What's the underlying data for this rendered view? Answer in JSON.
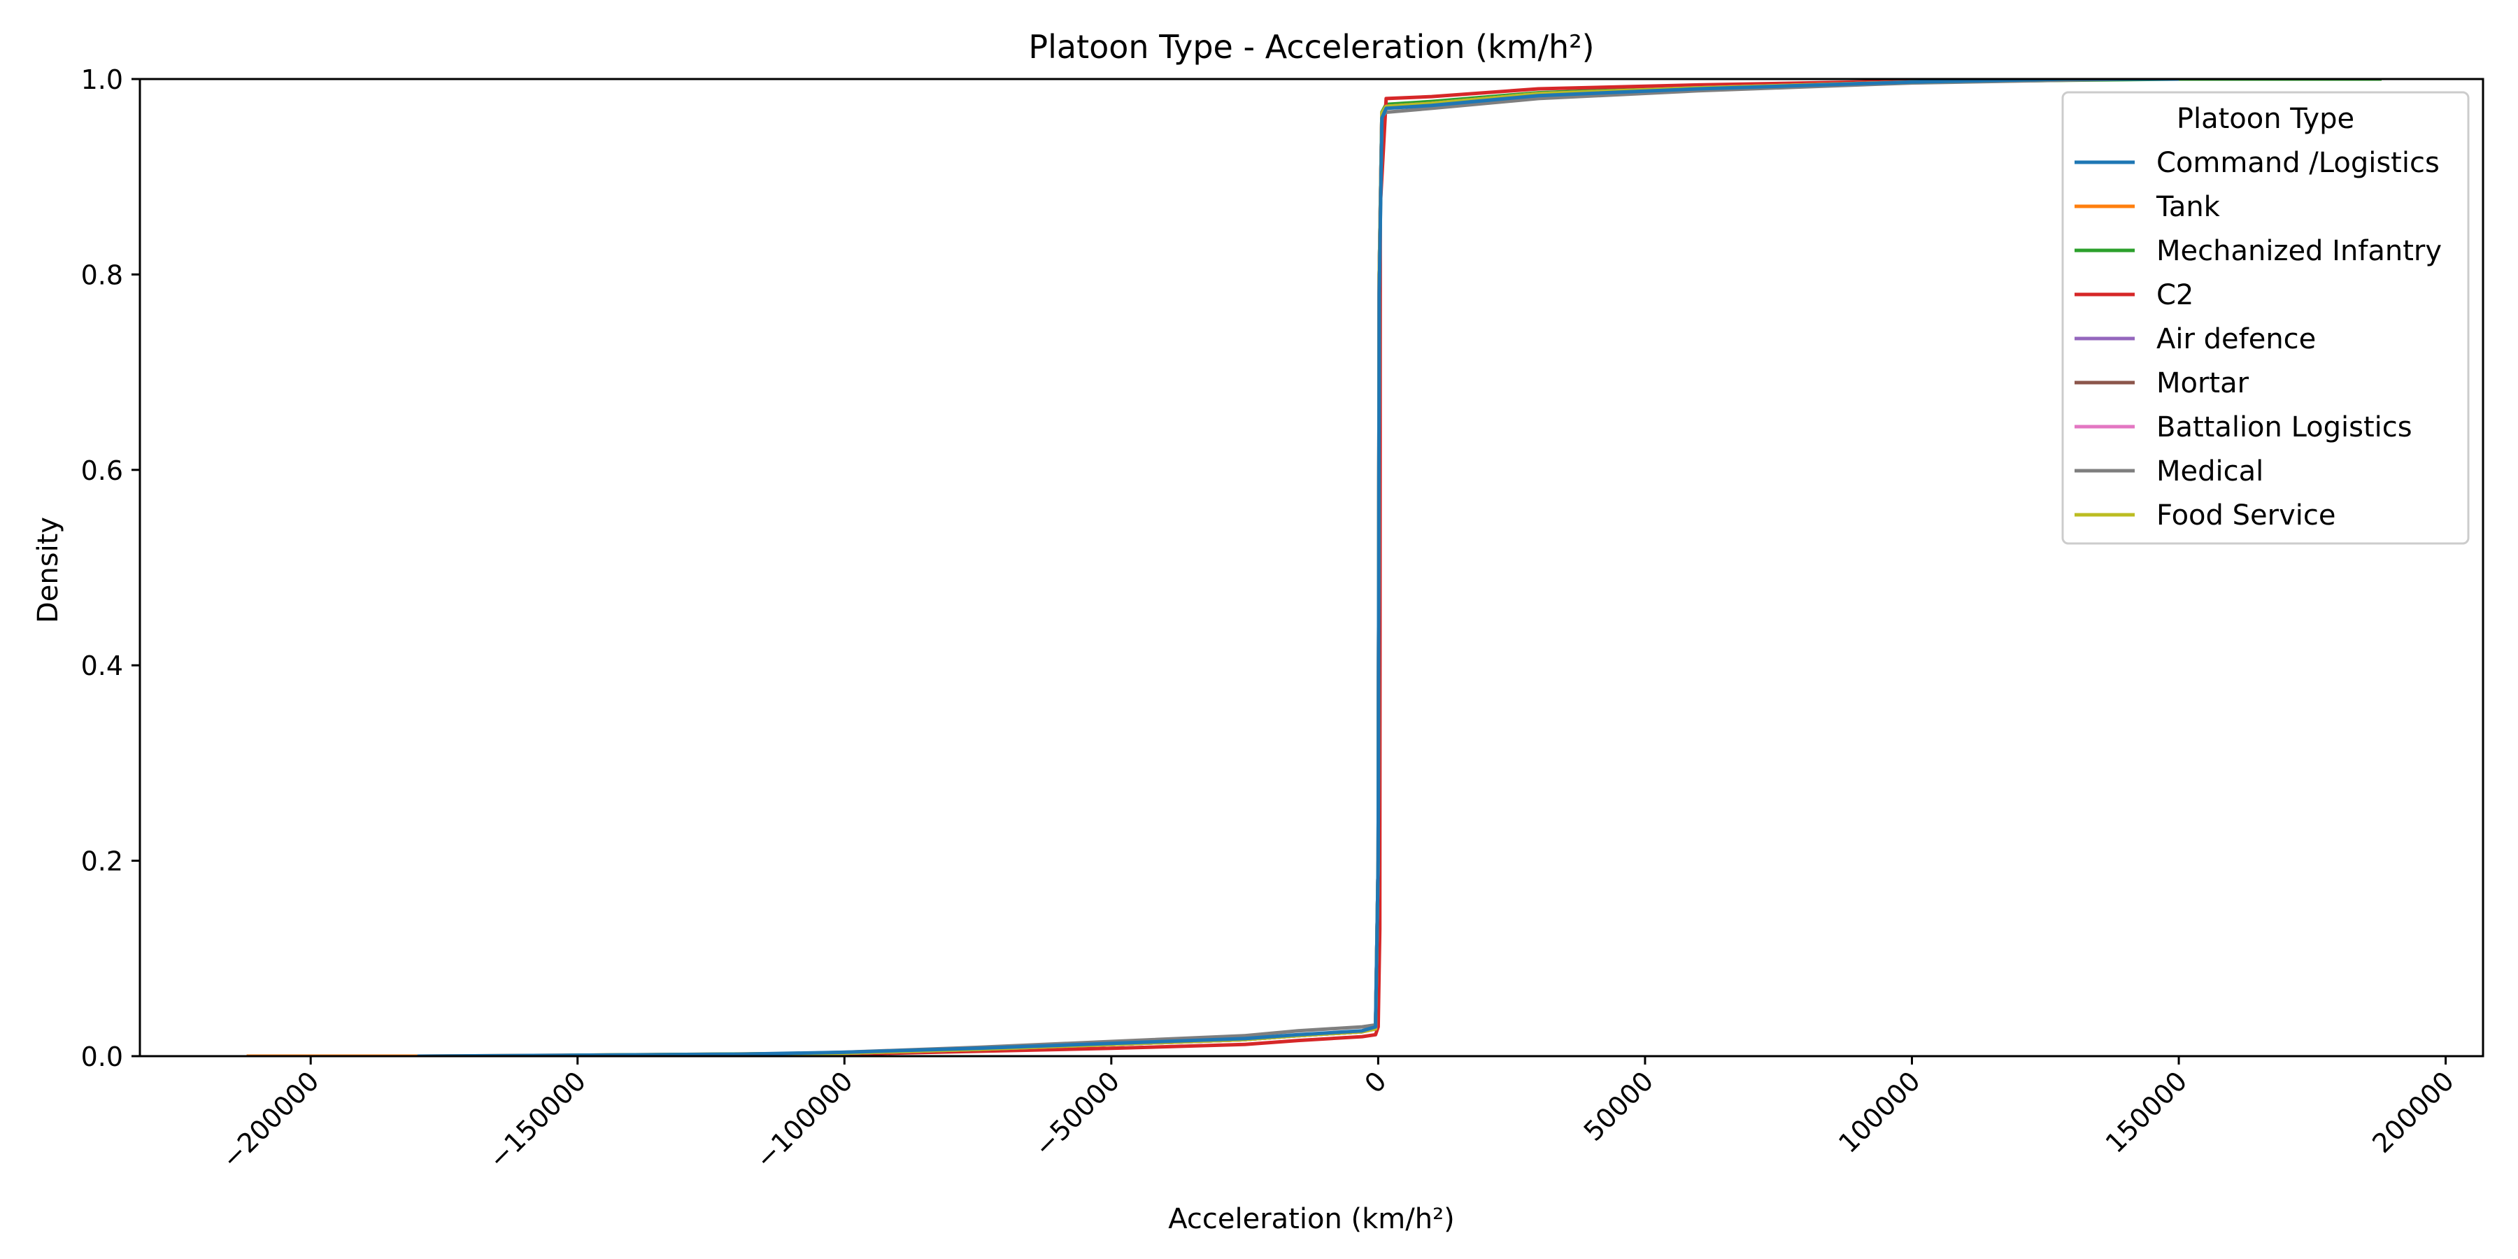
{
  "chart_data": {
    "type": "line",
    "title": "Platoon Type - Acceleration (km/h²)",
    "xlabel": "Acceleration (km/h²)",
    "ylabel": "Density",
    "xlim": [
      -232000,
      207000
    ],
    "ylim": [
      0,
      1.0
    ],
    "x_ticks": [
      -200000,
      -150000,
      -100000,
      -50000,
      0,
      50000,
      100000,
      150000,
      200000
    ],
    "x_tick_labels": [
      "−200000",
      "−150000",
      "−100000",
      "−50000",
      "0",
      "50000",
      "100000",
      "150000",
      "200000"
    ],
    "y_ticks": [
      0.0,
      0.2,
      0.4,
      0.6,
      0.8,
      1.0
    ],
    "y_tick_labels": [
      "0.0",
      "0.2",
      "0.4",
      "0.6",
      "0.8",
      "1.0"
    ],
    "grid": false,
    "legend": {
      "title": "Platoon Type",
      "placement": "top-right"
    },
    "series": [
      {
        "name": "Command /Logistics",
        "color": "#1f77b4",
        "points": [
          [
            -180000,
            0
          ],
          [
            -150000,
            0.001
          ],
          [
            -120000,
            0.002
          ],
          [
            -100000,
            0.004
          ],
          [
            -75000,
            0.008
          ],
          [
            -50000,
            0.013
          ],
          [
            -25000,
            0.018
          ],
          [
            -15000,
            0.022
          ],
          [
            -3000,
            0.026
          ],
          [
            -500,
            0.03
          ],
          [
            0,
            0.2
          ],
          [
            200,
            0.78
          ],
          [
            700,
            0.96
          ],
          [
            1500,
            0.97
          ],
          [
            10000,
            0.973
          ],
          [
            30000,
            0.983
          ],
          [
            60000,
            0.99
          ],
          [
            100000,
            0.997
          ],
          [
            130000,
            1.0
          ],
          [
            150000,
            1.0
          ]
        ]
      },
      {
        "name": "Tank",
        "color": "#ff7f0e",
        "points": [
          [
            -212000,
            0
          ],
          [
            -180000,
            0
          ],
          [
            -150000,
            0.001
          ],
          [
            -100000,
            0.003
          ],
          [
            -75000,
            0.007
          ],
          [
            -50000,
            0.012
          ],
          [
            -25000,
            0.017
          ],
          [
            -15000,
            0.021
          ],
          [
            -3000,
            0.025
          ],
          [
            -500,
            0.028
          ],
          [
            0,
            0.2
          ],
          [
            200,
            0.8
          ],
          [
            700,
            0.965
          ],
          [
            1500,
            0.973
          ],
          [
            10000,
            0.976
          ],
          [
            30000,
            0.985
          ],
          [
            60000,
            0.991
          ],
          [
            100000,
            0.997
          ],
          [
            140000,
            1.0
          ],
          [
            160000,
            1.0
          ]
        ]
      },
      {
        "name": "Mechanized Infantry",
        "color": "#2ca02c",
        "points": [
          [
            -160000,
            0
          ],
          [
            -150000,
            0.001
          ],
          [
            -100000,
            0.003
          ],
          [
            -75000,
            0.007
          ],
          [
            -50000,
            0.012
          ],
          [
            -25000,
            0.017
          ],
          [
            -15000,
            0.021
          ],
          [
            -3000,
            0.025
          ],
          [
            -500,
            0.028
          ],
          [
            0,
            0.2
          ],
          [
            200,
            0.8
          ],
          [
            700,
            0.966
          ],
          [
            1500,
            0.974
          ],
          [
            10000,
            0.977
          ],
          [
            30000,
            0.986
          ],
          [
            60000,
            0.992
          ],
          [
            100000,
            0.997
          ],
          [
            150000,
            1.0
          ],
          [
            188000,
            1.0
          ]
        ]
      },
      {
        "name": "C2",
        "color": "#d62728",
        "points": [
          [
            -150000,
            0
          ],
          [
            -120000,
            0.001
          ],
          [
            -100000,
            0.002
          ],
          [
            -75000,
            0.005
          ],
          [
            -50000,
            0.008
          ],
          [
            -25000,
            0.012
          ],
          [
            -15000,
            0.016
          ],
          [
            -3000,
            0.02
          ],
          [
            -500,
            0.022
          ],
          [
            0,
            0.03
          ],
          [
            300,
            0.13
          ],
          [
            400,
            0.87
          ],
          [
            1000,
            0.93
          ],
          [
            1500,
            0.98
          ],
          [
            10000,
            0.982
          ],
          [
            30000,
            0.99
          ],
          [
            60000,
            0.994
          ],
          [
            100000,
            0.998
          ],
          [
            120000,
            1.0
          ],
          [
            140000,
            1.0
          ]
        ]
      },
      {
        "name": "Air defence",
        "color": "#9467bd",
        "points": [
          [
            -150000,
            0
          ],
          [
            -100000,
            0.003
          ],
          [
            -75000,
            0.007
          ],
          [
            -50000,
            0.012
          ],
          [
            -25000,
            0.017
          ],
          [
            -15000,
            0.021
          ],
          [
            -3000,
            0.025
          ],
          [
            -500,
            0.028
          ],
          [
            0,
            0.2
          ],
          [
            200,
            0.8
          ],
          [
            700,
            0.965
          ],
          [
            1500,
            0.972
          ],
          [
            10000,
            0.975
          ],
          [
            30000,
            0.985
          ],
          [
            60000,
            0.991
          ],
          [
            100000,
            0.997
          ],
          [
            130000,
            1.0
          ]
        ]
      },
      {
        "name": "Mortar",
        "color": "#8c564b",
        "points": [
          [
            -150000,
            0
          ],
          [
            -100000,
            0.003
          ],
          [
            -75000,
            0.007
          ],
          [
            -50000,
            0.012
          ],
          [
            -25000,
            0.017
          ],
          [
            -15000,
            0.021
          ],
          [
            -3000,
            0.025
          ],
          [
            -500,
            0.028
          ],
          [
            0,
            0.2
          ],
          [
            200,
            0.8
          ],
          [
            700,
            0.965
          ],
          [
            1500,
            0.972
          ],
          [
            10000,
            0.975
          ],
          [
            30000,
            0.985
          ],
          [
            60000,
            0.991
          ],
          [
            100000,
            0.997
          ],
          [
            130000,
            1.0
          ]
        ]
      },
      {
        "name": "Battalion Logistics",
        "color": "#e377c2",
        "points": [
          [
            -150000,
            0
          ],
          [
            -100000,
            0.003
          ],
          [
            -75000,
            0.007
          ],
          [
            -50000,
            0.012
          ],
          [
            -25000,
            0.017
          ],
          [
            -15000,
            0.021
          ],
          [
            -3000,
            0.025
          ],
          [
            -500,
            0.028
          ],
          [
            0,
            0.2
          ],
          [
            200,
            0.8
          ],
          [
            700,
            0.965
          ],
          [
            1500,
            0.972
          ],
          [
            10000,
            0.975
          ],
          [
            30000,
            0.985
          ],
          [
            60000,
            0.991
          ],
          [
            100000,
            0.997
          ],
          [
            130000,
            1.0
          ]
        ]
      },
      {
        "name": "Medical",
        "color": "#7f7f7f",
        "points": [
          [
            -150000,
            0
          ],
          [
            -120000,
            0.001
          ],
          [
            -100000,
            0.004
          ],
          [
            -75000,
            0.009
          ],
          [
            -50000,
            0.015
          ],
          [
            -25000,
            0.021
          ],
          [
            -15000,
            0.026
          ],
          [
            -3000,
            0.03
          ],
          [
            -500,
            0.032
          ],
          [
            0,
            0.2
          ],
          [
            200,
            0.78
          ],
          [
            700,
            0.962
          ],
          [
            1500,
            0.966
          ],
          [
            10000,
            0.97
          ],
          [
            30000,
            0.98
          ],
          [
            60000,
            0.988
          ],
          [
            100000,
            0.996
          ],
          [
            140000,
            1.0
          ]
        ]
      },
      {
        "name": "Food Service",
        "color": "#bcbd22",
        "points": [
          [
            -150000,
            0
          ],
          [
            -100000,
            0.003
          ],
          [
            -75000,
            0.007
          ],
          [
            -50000,
            0.012
          ],
          [
            -25000,
            0.017
          ],
          [
            -15000,
            0.021
          ],
          [
            -3000,
            0.025
          ],
          [
            -500,
            0.028
          ],
          [
            0,
            0.2
          ],
          [
            200,
            0.8
          ],
          [
            700,
            0.965
          ],
          [
            1500,
            0.972
          ],
          [
            10000,
            0.975
          ],
          [
            30000,
            0.985
          ],
          [
            60000,
            0.991
          ],
          [
            100000,
            0.997
          ],
          [
            130000,
            1.0
          ]
        ]
      }
    ]
  }
}
